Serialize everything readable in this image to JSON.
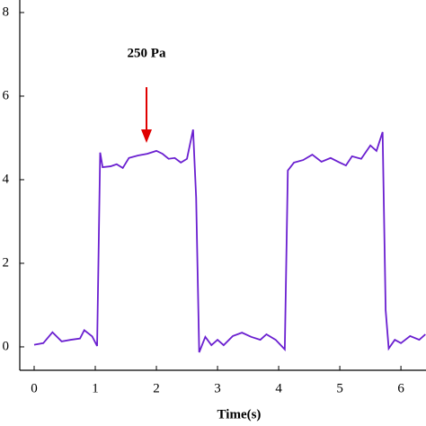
{
  "chart_data": {
    "type": "line",
    "annotation": "250 Pa",
    "xlabel": "Time(s)",
    "x": [
      0,
      0.15,
      0.3,
      0.45,
      0.6,
      0.75,
      0.82,
      0.95,
      1.03,
      1.08,
      1.12,
      1.25,
      1.35,
      1.45,
      1.55,
      1.7,
      1.85,
      2.0,
      2.1,
      2.2,
      2.3,
      2.4,
      2.5,
      2.6,
      2.65,
      2.7,
      2.8,
      2.9,
      3.0,
      3.1,
      3.25,
      3.4,
      3.55,
      3.7,
      3.8,
      3.95,
      4.1,
      4.15,
      4.25,
      4.4,
      4.55,
      4.7,
      4.85,
      5.0,
      5.1,
      5.2,
      5.35,
      5.5,
      5.6,
      5.7,
      5.75,
      5.8,
      5.9,
      6.0,
      6.15,
      6.3,
      6.4
    ],
    "series": [
      {
        "color": "#6a1fd0",
        "values": [
          0.05,
          0.09,
          0.35,
          0.13,
          0.17,
          0.2,
          0.4,
          0.25,
          0.02,
          4.65,
          4.3,
          4.32,
          4.37,
          4.28,
          4.52,
          4.58,
          4.62,
          4.69,
          4.62,
          4.5,
          4.52,
          4.41,
          4.5,
          5.2,
          3.57,
          -0.13,
          0.24,
          0.04,
          0.17,
          0.04,
          0.26,
          0.34,
          0.24,
          0.17,
          0.3,
          0.17,
          -0.06,
          4.22,
          4.41,
          4.47,
          4.6,
          4.43,
          4.52,
          4.41,
          4.34,
          4.56,
          4.5,
          4.82,
          4.69,
          5.14,
          0.88,
          -0.04,
          0.17,
          0.09,
          0.26,
          0.17,
          0.3
        ]
      }
    ],
    "xlim": [
      -0.235,
      6.41
    ],
    "ylim": [
      -0.56,
      8.3
    ],
    "xticks": [
      0,
      1,
      2,
      3,
      4,
      5,
      6
    ],
    "yticks": [
      0,
      2,
      4,
      6,
      8
    ]
  }
}
